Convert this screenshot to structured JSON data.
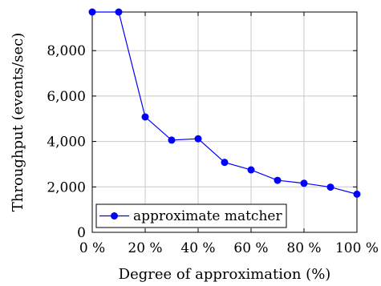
{
  "chart_data": {
    "type": "line",
    "xlabel": "Degree of approximation (%)",
    "ylabel": "Throughput (events/sec)",
    "x": [
      0,
      10,
      20,
      30,
      40,
      50,
      60,
      70,
      80,
      90,
      100
    ],
    "x_ticks": [
      0,
      20,
      40,
      60,
      80,
      100
    ],
    "x_tick_labels": [
      "0 %",
      "20 %",
      "40 %",
      "60 %",
      "80 %",
      "100 %"
    ],
    "xlim": [
      0,
      100
    ],
    "y_ticks": [
      0,
      2000,
      4000,
      6000,
      8000
    ],
    "y_tick_labels": [
      "0",
      "2,000",
      "4,000",
      "6,000",
      "8,000"
    ],
    "ylim": [
      0,
      9700
    ],
    "grid": true,
    "legend_position": "bottom-left",
    "series": [
      {
        "name": "approximate matcher",
        "color": "#0000ff",
        "marker": "circle",
        "values": [
          9700,
          9700,
          5080,
          4060,
          4120,
          3080,
          2750,
          2290,
          2160,
          1990,
          1680
        ]
      }
    ]
  }
}
